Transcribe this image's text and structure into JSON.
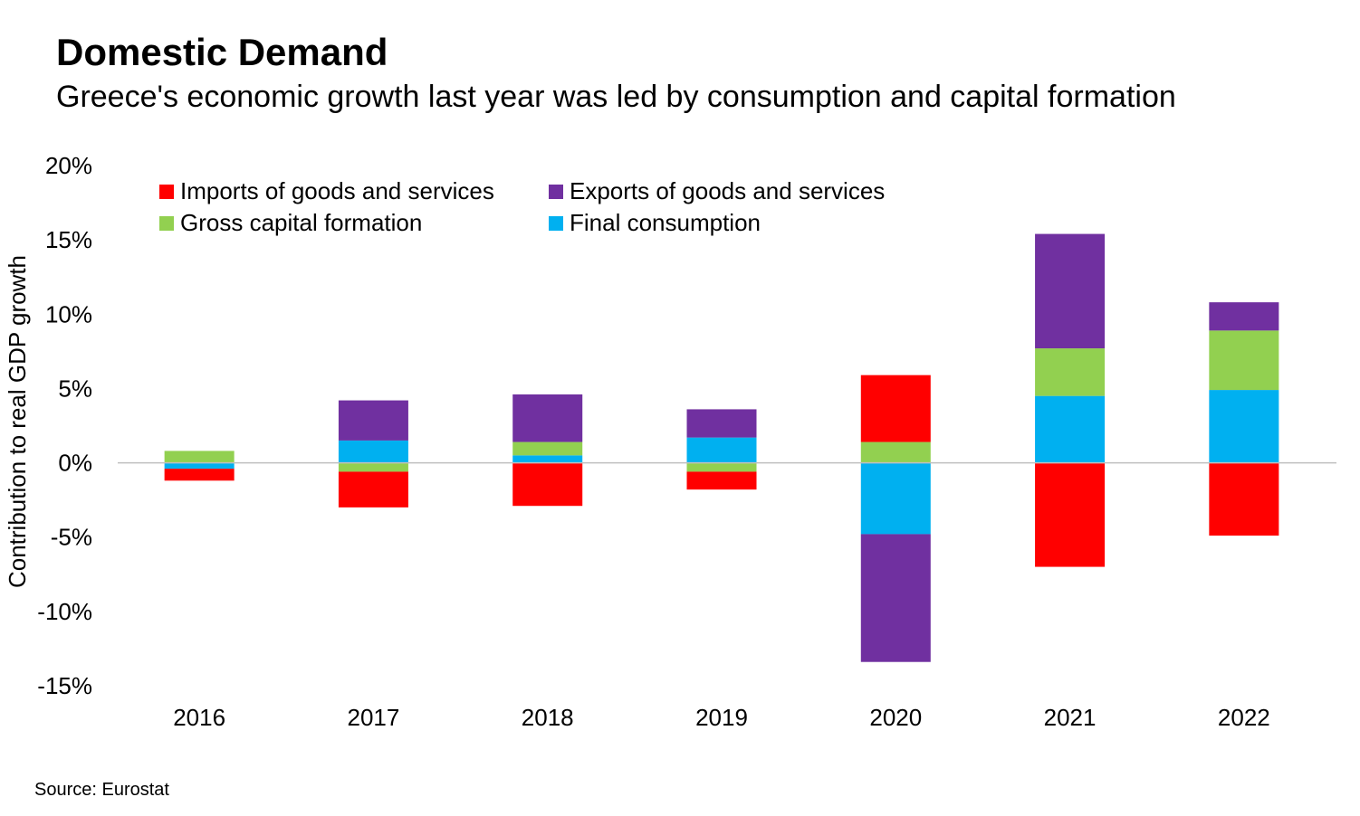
{
  "title": "Domestic Demand",
  "subtitle": "Greece's economic growth last year was led by consumption and capital formation",
  "source": "Source: Eurostat",
  "chart_data": {
    "type": "bar",
    "stacked": true,
    "ylabel": "Contribution to real GDP growth",
    "xlabel": "",
    "ylim": [
      -15,
      20
    ],
    "yticks": [
      20,
      15,
      10,
      5,
      0,
      -5,
      -10,
      -15
    ],
    "ytick_labels": [
      "20%",
      "15%",
      "10%",
      "5%",
      "0%",
      "-5%",
      "-10%",
      "-15%"
    ],
    "categories": [
      "2016",
      "2017",
      "2018",
      "2019",
      "2020",
      "2021",
      "2022"
    ],
    "legend_position": "top-left",
    "series": [
      {
        "name": "Final consumption",
        "color": "#00B0F0",
        "values": [
          -0.4,
          1.5,
          0.5,
          1.7,
          -4.8,
          4.5,
          4.9
        ]
      },
      {
        "name": "Gross capital formation",
        "color": "#92D050",
        "values": [
          0.8,
          -0.6,
          0.9,
          -0.6,
          1.4,
          3.2,
          4.0
        ]
      },
      {
        "name": "Exports of goods and services",
        "color": "#7030A0",
        "values": [
          0.0,
          2.7,
          3.2,
          1.9,
          -8.6,
          7.7,
          1.9
        ]
      },
      {
        "name": "Imports of goods and services",
        "color": "#FF0000",
        "values": [
          -0.8,
          -2.4,
          -2.9,
          -1.2,
          4.5,
          -7.0,
          -4.9
        ]
      }
    ],
    "legend_order": [
      "Imports of goods and services",
      "Exports of goods and services",
      "Gross capital formation",
      "Final consumption"
    ],
    "grid": false
  }
}
